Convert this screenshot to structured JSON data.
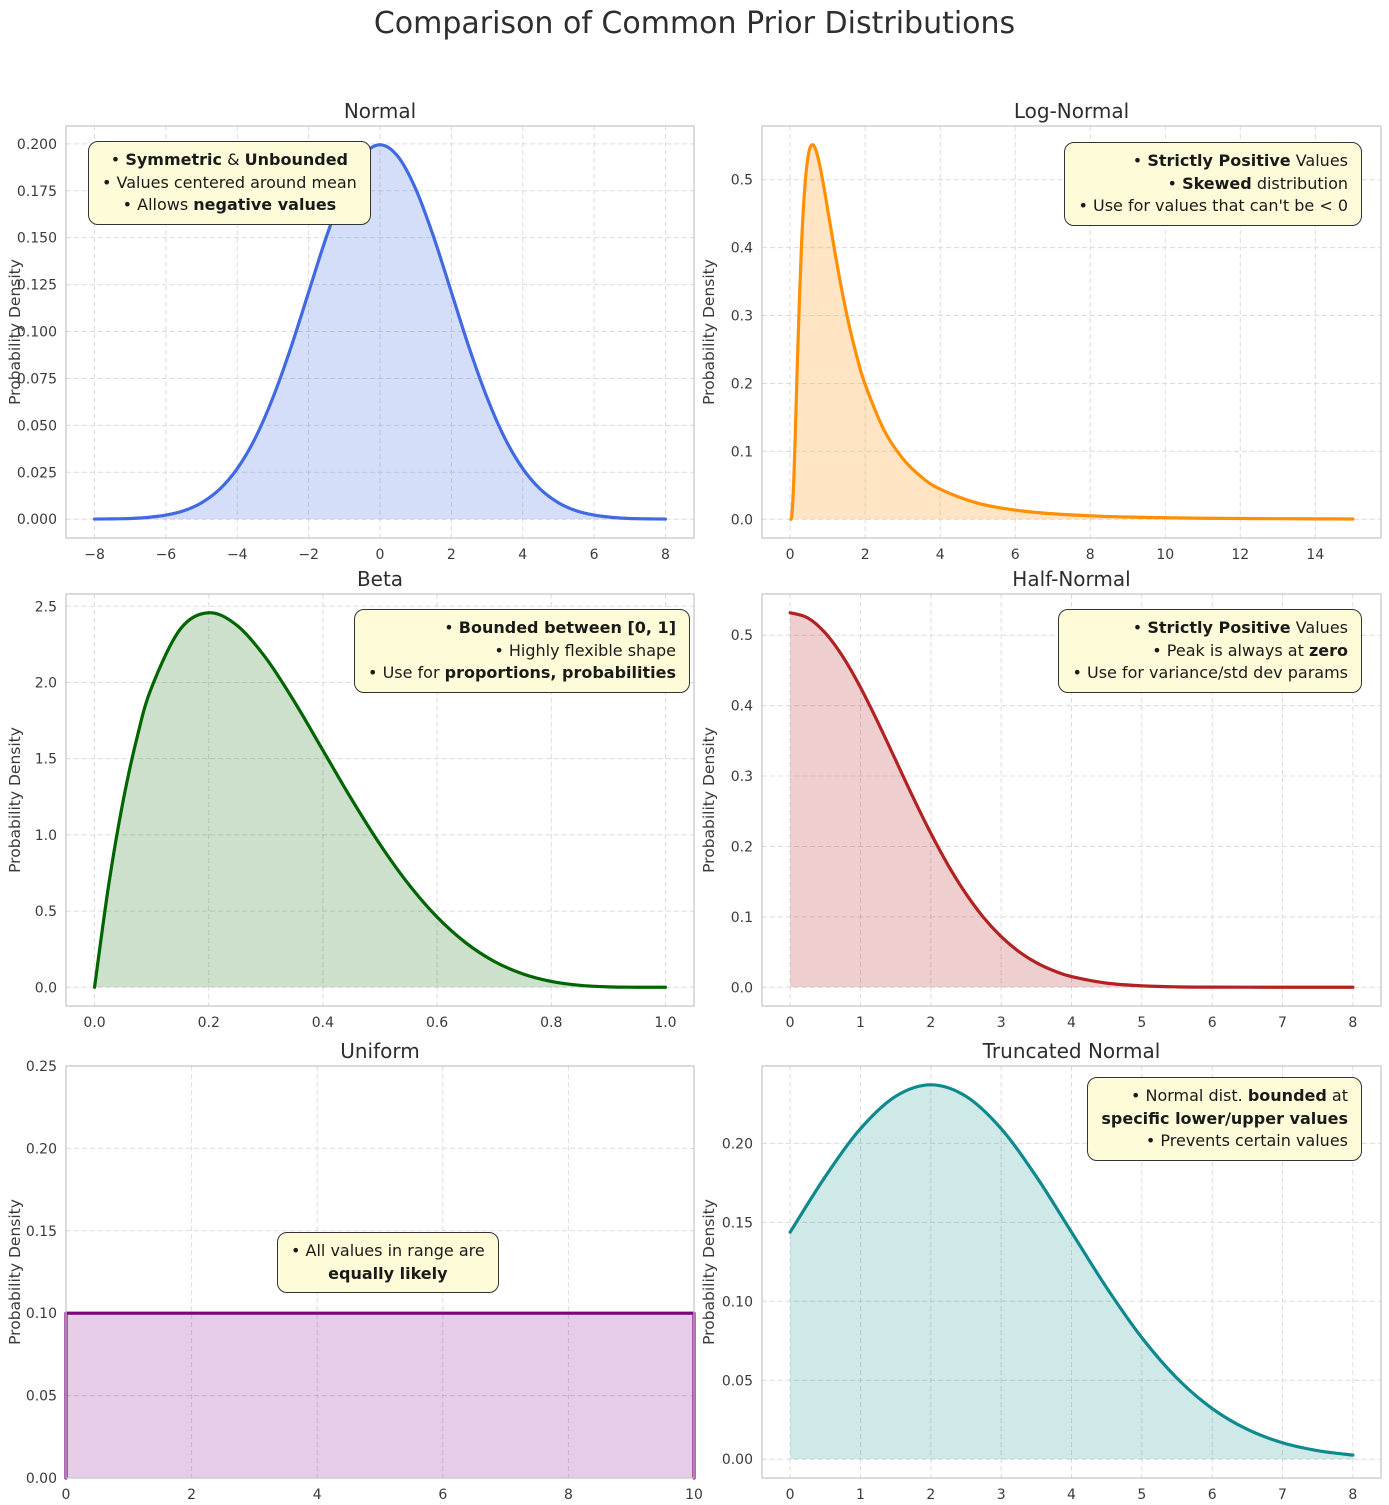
{
  "title": "Comparison of Common Prior Distributions",
  "chart_data": [
    {
      "type": "area",
      "key": "normal",
      "title": "Normal",
      "ylabel": "Probability Density",
      "color": "#4169E1",
      "fill": "rgba(65,105,225,0.22)",
      "grid": true,
      "xlim": [
        -8.8,
        8.8
      ],
      "ylim": [
        -0.01,
        0.2095
      ],
      "xticks": {
        "values": [
          -8,
          -6,
          -4,
          -2,
          0,
          2,
          4,
          6,
          8
        ],
        "labels": [
          "−8",
          "−6",
          "−4",
          "−2",
          "0",
          "2",
          "4",
          "6",
          "8"
        ]
      },
      "yticks": {
        "values": [
          0,
          0.025,
          0.05,
          0.075,
          0.1,
          0.125,
          0.15,
          0.175,
          0.2
        ],
        "labels": [
          "0.000",
          "0.025",
          "0.050",
          "0.075",
          "0.100",
          "0.125",
          "0.150",
          "0.175",
          "0.200"
        ]
      },
      "curve": {
        "x": [
          -8,
          -7.5,
          -7,
          -6.5,
          -6,
          -5.5,
          -5,
          -4.5,
          -4,
          -3.5,
          -3,
          -2.5,
          -2,
          -1.5,
          -1,
          -0.5,
          0,
          0.5,
          1,
          1.5,
          2,
          2.5,
          3,
          3.5,
          4,
          4.5,
          5,
          5.5,
          6,
          6.5,
          7,
          7.5,
          8
        ],
        "y": [
          0.0001,
          0.0002,
          0.0004,
          0.001,
          0.0022,
          0.0045,
          0.0088,
          0.0159,
          0.027,
          0.0431,
          0.0648,
          0.0913,
          0.121,
          0.1506,
          0.176,
          0.1933,
          0.1995,
          0.1933,
          0.176,
          0.1506,
          0.121,
          0.0913,
          0.0648,
          0.0431,
          0.027,
          0.0159,
          0.0088,
          0.0045,
          0.0022,
          0.001,
          0.0004,
          0.0002,
          0.0001
        ]
      },
      "annotation": {
        "align": "center",
        "lines": [
          [
            [
              "• ",
              0
            ],
            [
              "Symmetric",
              1
            ],
            [
              " & ",
              0
            ],
            [
              "Unbounded",
              1
            ]
          ],
          [
            [
              "• Values centered around mean",
              0
            ]
          ],
          [
            [
              "• Allows ",
              0
            ],
            [
              "negative values",
              1
            ]
          ]
        ]
      }
    },
    {
      "type": "area",
      "key": "log-normal",
      "title": "Log-Normal",
      "ylabel": "Probability Density",
      "color": "#FF8F05",
      "fill": "rgba(255,150,20,0.25)",
      "grid": true,
      "xlim": [
        -0.75,
        15.75
      ],
      "ylim": [
        -0.0276,
        0.5791
      ],
      "xticks": {
        "values": [
          0,
          2,
          4,
          6,
          8,
          10,
          12,
          14
        ],
        "labels": [
          "0",
          "2",
          "4",
          "6",
          "8",
          "10",
          "12",
          "14"
        ]
      },
      "yticks": {
        "values": [
          0,
          0.1,
          0.2,
          0.3,
          0.4,
          0.5
        ],
        "labels": [
          "0.0",
          "0.1",
          "0.2",
          "0.3",
          "0.4",
          "0.5"
        ]
      },
      "curve": {
        "x": [
          0.02,
          0.05,
          0.1,
          0.15,
          0.2,
          0.3,
          0.4,
          0.5,
          0.6,
          0.7,
          0.8,
          0.9,
          1.0,
          1.2,
          1.4,
          1.6,
          1.8,
          2.0,
          2.5,
          3.0,
          3.5,
          4.0,
          5.0,
          6.0,
          7.0,
          8.0,
          9.0,
          10.0,
          11.0,
          12.0,
          13.0,
          14.0,
          15.0
        ],
        "y": [
          0.0,
          0.008,
          0.0616,
          0.1489,
          0.2434,
          0.3999,
          0.4953,
          0.5405,
          0.5515,
          0.5411,
          0.5183,
          0.4889,
          0.4565,
          0.3911,
          0.331,
          0.2789,
          0.235,
          0.1983,
          0.1316,
          0.0895,
          0.0623,
          0.0443,
          0.0237,
          0.0135,
          0.0081,
          0.0051,
          0.0033,
          0.0022,
          0.0015,
          0.0011,
          0.0008,
          0.0006,
          0.0004
        ]
      },
      "annotation": {
        "align": "right",
        "lines": [
          [
            [
              "• ",
              0
            ],
            [
              "Strictly Positive",
              1
            ],
            [
              " Values",
              0
            ]
          ],
          [
            [
              "• ",
              0
            ],
            [
              "Skewed",
              1
            ],
            [
              " distribution",
              0
            ]
          ],
          [
            [
              "• Use for values that can't be < 0",
              0
            ]
          ]
        ]
      }
    },
    {
      "type": "area",
      "key": "beta",
      "title": "Beta",
      "ylabel": "Probability Density",
      "color": "#006400",
      "fill": "rgba(0,100,0,0.2)",
      "grid": true,
      "xlim": [
        -0.05,
        1.05
      ],
      "ylim": [
        -0.1229,
        2.5805
      ],
      "xticks": {
        "values": [
          0,
          0.2,
          0.4,
          0.6,
          0.8,
          1.0
        ],
        "labels": [
          "0.0",
          "0.2",
          "0.4",
          "0.6",
          "0.8",
          "1.0"
        ]
      },
      "yticks": {
        "values": [
          0,
          0.5,
          1.0,
          1.5,
          2.0,
          2.5
        ],
        "labels": [
          "0.0",
          "0.5",
          "1.0",
          "1.5",
          "2.0",
          "2.5"
        ]
      },
      "curve": {
        "x": [
          0,
          0.025,
          0.05,
          0.075,
          0.1,
          0.15,
          0.2,
          0.25,
          0.3,
          0.35,
          0.4,
          0.45,
          0.5,
          0.55,
          0.6,
          0.65,
          0.7,
          0.75,
          0.8,
          0.85,
          0.9,
          0.95,
          1.0
        ],
        "y": [
          0,
          0.6778,
          1.2218,
          1.6472,
          1.9683,
          2.349,
          2.4576,
          2.373,
          2.1609,
          1.8743,
          1.5552,
          1.2353,
          0.9375,
          0.6766,
          0.4608,
          0.2926,
          0.1701,
          0.0879,
          0.0384,
          0.0129,
          0.0027,
          0.0002,
          0
        ]
      },
      "annotation": {
        "align": "right",
        "lines": [
          [
            [
              "• ",
              0
            ],
            [
              "Bounded between [0, 1]",
              1
            ]
          ],
          [
            [
              "• Highly flexible shape",
              0
            ]
          ],
          [
            [
              "• Use for ",
              0
            ],
            [
              "proportions, probabilities",
              1
            ]
          ]
        ]
      }
    },
    {
      "type": "area",
      "key": "half-normal",
      "title": "Half-Normal",
      "ylabel": "Probability Density",
      "color": "#B22222",
      "fill": "rgba(178,34,34,0.22)",
      "grid": true,
      "xlim": [
        -0.4,
        8.4
      ],
      "ylim": [
        -0.0266,
        0.5585
      ],
      "xticks": {
        "values": [
          0,
          1,
          2,
          3,
          4,
          5,
          6,
          7,
          8
        ],
        "labels": [
          "0",
          "1",
          "2",
          "3",
          "4",
          "5",
          "6",
          "7",
          "8"
        ]
      },
      "yticks": {
        "values": [
          0,
          0.1,
          0.2,
          0.3,
          0.4,
          0.5
        ],
        "labels": [
          "0.0",
          "0.1",
          "0.2",
          "0.3",
          "0.4",
          "0.5"
        ]
      },
      "curve": {
        "x": [
          0,
          0.25,
          0.5,
          0.75,
          1,
          1.25,
          1.5,
          1.75,
          2,
          2.25,
          2.5,
          2.75,
          3,
          3.25,
          3.5,
          3.75,
          4,
          4.5,
          5,
          5.5,
          6,
          6.5,
          7,
          7.5,
          8
        ],
        "y": [
          0.5319,
          0.5246,
          0.5031,
          0.4694,
          0.4259,
          0.3758,
          0.3226,
          0.2693,
          0.2187,
          0.1727,
          0.1327,
          0.0991,
          0.072,
          0.0508,
          0.0349,
          0.0234,
          0.0152,
          0.0059,
          0.0021,
          0.0006,
          0.0002,
          0.0001,
          0.0,
          0.0,
          0.0
        ]
      },
      "annotation": {
        "align": "right",
        "lines": [
          [
            [
              "• ",
              0
            ],
            [
              "Strictly Positive",
              1
            ],
            [
              " Values",
              0
            ]
          ],
          [
            [
              "• Peak is always at ",
              0
            ],
            [
              "zero",
              1
            ]
          ],
          [
            [
              "• Use for variance/std dev params",
              0
            ]
          ]
        ]
      }
    },
    {
      "type": "area",
      "key": "uniform",
      "title": "Uniform",
      "ylabel": "Probability Density",
      "color": "#800080",
      "fill": "rgba(128,0,128,0.2)",
      "grid": true,
      "smooth": false,
      "xlim": [
        0,
        10
      ],
      "ylim": [
        0,
        0.25
      ],
      "xticks": {
        "values": [
          0,
          2,
          4,
          6,
          8,
          10
        ],
        "labels": [
          "0",
          "2",
          "4",
          "6",
          "8",
          "10"
        ]
      },
      "yticks": {
        "values": [
          0,
          0.05,
          0.1,
          0.15,
          0.2,
          0.25
        ],
        "labels": [
          "0.00",
          "0.05",
          "0.10",
          "0.15",
          "0.20",
          "0.25"
        ]
      },
      "curve": {
        "x": [
          0,
          0,
          10,
          10
        ],
        "y": [
          0,
          0.1,
          0.1,
          0
        ]
      },
      "annotation": {
        "align": "center",
        "lines": [
          [
            [
              "• All values in range are",
              0
            ]
          ],
          [
            [
              "equally likely",
              1
            ]
          ]
        ]
      }
    },
    {
      "type": "area",
      "key": "truncated-normal",
      "title": "Truncated Normal",
      "ylabel": "Probability Density",
      "color": "#0E8A8E",
      "fill": "rgba(14,138,142,0.2)",
      "grid": true,
      "xlim": [
        -0.4,
        8.4
      ],
      "ylim": [
        -0.0119,
        0.249
      ],
      "xticks": {
        "values": [
          0,
          1,
          2,
          3,
          4,
          5,
          6,
          7,
          8
        ],
        "labels": [
          "0",
          "1",
          "2",
          "3",
          "4",
          "5",
          "6",
          "7",
          "8"
        ]
      },
      "yticks": {
        "values": [
          0,
          0.05,
          0.1,
          0.15,
          0.2
        ],
        "labels": [
          "0.00",
          "0.05",
          "0.10",
          "0.15",
          "0.20"
        ]
      },
      "curve": {
        "x": [
          0,
          0.5,
          1,
          1.5,
          2,
          2.5,
          3,
          3.5,
          4,
          4.5,
          5,
          5.5,
          6,
          6.5,
          7,
          7.5,
          8
        ],
        "y": [
          0.1438,
          0.179,
          0.2093,
          0.2298,
          0.2371,
          0.2298,
          0.2093,
          0.179,
          0.1438,
          0.1086,
          0.077,
          0.0513,
          0.0321,
          0.0189,
          0.0104,
          0.0054,
          0.0026
        ]
      },
      "annotation": {
        "align": "right",
        "lines": [
          [
            [
              "• Normal dist. ",
              0
            ],
            [
              "bounded",
              1
            ],
            [
              " at",
              0
            ]
          ],
          [
            [
              "specific lower/upper values",
              1
            ]
          ],
          [
            [
              "• Prevents certain values",
              0
            ]
          ]
        ]
      }
    }
  ]
}
